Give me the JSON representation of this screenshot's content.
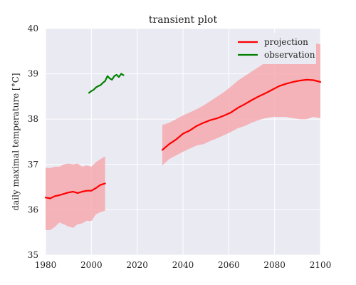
{
  "chart_data": {
    "type": "line",
    "title": "transient plot",
    "xlabel": "",
    "ylabel": "daily maximal temperature [°C]",
    "xlim": [
      1980,
      2100
    ],
    "ylim": [
      35,
      40
    ],
    "xticks": [
      1980,
      2000,
      2020,
      2040,
      2060,
      2080,
      2100
    ],
    "yticks": [
      35,
      36,
      37,
      38,
      39,
      40
    ],
    "xtick_labels": [
      "1980",
      "2000",
      "2020",
      "2040",
      "2060",
      "2080",
      "2100"
    ],
    "ytick_labels": [
      "35",
      "36",
      "37",
      "38",
      "39",
      "40"
    ],
    "grid": true,
    "legend_position": "top-right",
    "series": [
      {
        "name": "projection",
        "color": "#ff0000",
        "band_color": "#f4a9ae",
        "segments": [
          {
            "x": [
              1980,
              1982,
              1984,
              1986,
              1988,
              1990,
              1992,
              1994,
              1996,
              1998,
              2000,
              2002,
              2004,
              2006
            ],
            "y": [
              36.27,
              36.25,
              36.3,
              36.32,
              36.35,
              36.38,
              36.4,
              36.37,
              36.4,
              36.42,
              36.42,
              36.48,
              36.55,
              36.58
            ],
            "low": [
              35.55,
              35.55,
              35.62,
              35.72,
              35.68,
              35.63,
              35.6,
              35.68,
              35.7,
              35.76,
              35.75,
              35.9,
              35.95,
              35.98
            ],
            "high": [
              36.93,
              36.92,
              36.95,
              36.95,
              37.0,
              37.02,
              37.0,
              37.02,
              36.95,
              36.98,
              36.95,
              37.05,
              37.12,
              37.18
            ]
          },
          {
            "x": [
              2031,
              2034,
              2037,
              2040,
              2043,
              2046,
              2049,
              2052,
              2055,
              2058,
              2061,
              2064,
              2067,
              2070,
              2073,
              2076,
              2079,
              2082,
              2085,
              2088,
              2091,
              2094,
              2097,
              2100
            ],
            "y": [
              37.32,
              37.45,
              37.55,
              37.68,
              37.75,
              37.85,
              37.92,
              37.98,
              38.02,
              38.08,
              38.15,
              38.25,
              38.33,
              38.42,
              38.5,
              38.57,
              38.65,
              38.73,
              38.78,
              38.82,
              38.85,
              38.87,
              38.86,
              38.82
            ],
            "low": [
              36.98,
              37.12,
              37.2,
              37.28,
              37.35,
              37.42,
              37.45,
              37.52,
              37.58,
              37.65,
              37.72,
              37.8,
              37.85,
              37.92,
              37.98,
              38.02,
              38.05,
              38.05,
              38.05,
              38.02,
              38.0,
              38.0,
              38.05,
              38.02
            ],
            "high": [
              37.87,
              37.92,
              38.0,
              38.08,
              38.15,
              38.22,
              38.3,
              38.4,
              38.5,
              38.6,
              38.72,
              38.85,
              38.95,
              39.05,
              39.15,
              39.25,
              39.35,
              39.48,
              39.55,
              39.6,
              39.65,
              39.7,
              39.68,
              39.65
            ]
          }
        ]
      },
      {
        "name": "observation",
        "color": "#008000",
        "segments": [
          {
            "x": [
              1999,
              2000,
              2001,
              2002,
              2003,
              2004,
              2005,
              2006,
              2007,
              2008,
              2009,
              2010,
              2011,
              2012,
              2013,
              2014
            ],
            "y": [
              38.58,
              38.62,
              38.65,
              38.7,
              38.73,
              38.75,
              38.8,
              38.84,
              38.95,
              38.9,
              38.87,
              38.95,
              38.98,
              38.93,
              39.0,
              38.97
            ]
          }
        ]
      }
    ]
  }
}
